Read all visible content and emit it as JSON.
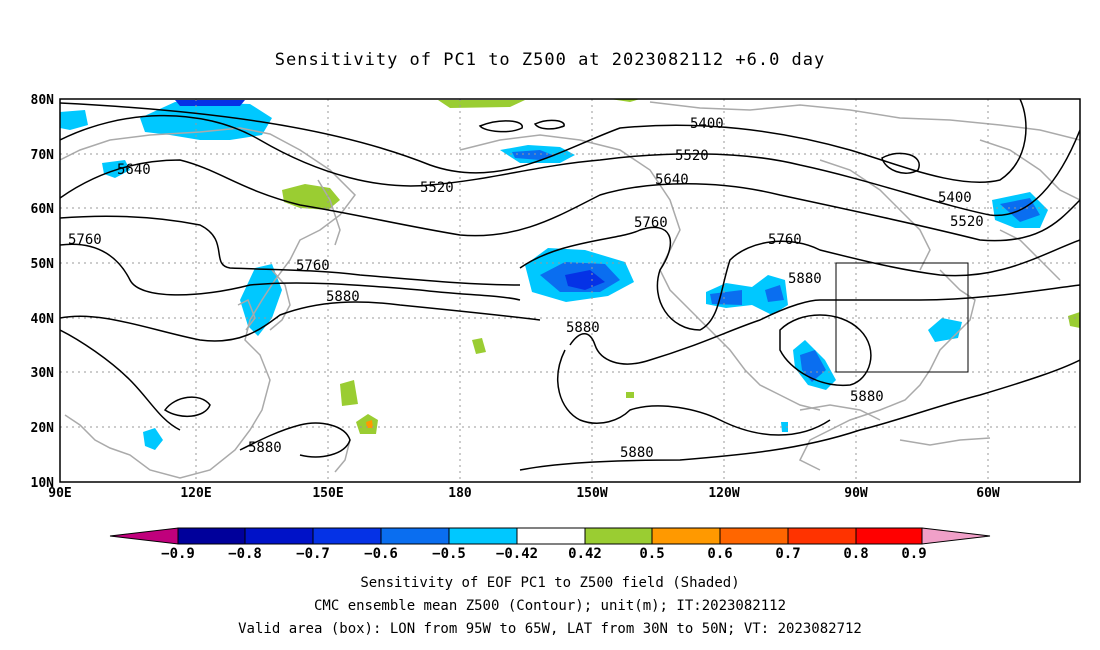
{
  "title": "Sensitivity of PC1 to Z500 at 2023082112 +6.0 day",
  "footer": {
    "line1": "Sensitivity of EOF PC1 to Z500 field (Shaded)",
    "line2": "CMC ensemble mean Z500 (Contour); unit(m); IT:2023082112",
    "line3": "Valid area (box): LON from 95W to 65W, LAT from 30N to 50N; VT: 2023082712"
  },
  "map": {
    "lat_labels": [
      "80N",
      "70N",
      "60N",
      "50N",
      "40N",
      "30N",
      "20N",
      "10N"
    ],
    "lon_labels": [
      "90E",
      "120E",
      "150E",
      "180",
      "150W",
      "120W",
      "90W",
      "60W"
    ],
    "contour_labels": [
      "5400",
      "5400",
      "5520",
      "5520",
      "5520",
      "5640",
      "5640",
      "5760",
      "5760",
      "5760",
      "5760",
      "5880",
      "5880",
      "5880",
      "5880",
      "5880",
      "5880"
    ],
    "colors": {
      "continent": "#aaaaaa",
      "grid": "#999999",
      "contour": "#000000",
      "neg_light": "#00c8ff",
      "neg_mid": "#0a6ef0",
      "neg_dark": "#0532e6",
      "pos_light": "#9acd32",
      "pos_orange": "#ff9900"
    }
  },
  "colorbar": {
    "labels": [
      "−0.9",
      "−0.8",
      "−0.7",
      "−0.6",
      "−0.5",
      "−0.42",
      "0.42",
      "0.5",
      "0.6",
      "0.7",
      "0.8",
      "0.9"
    ],
    "colors": [
      "#c0007c",
      "#00009b",
      "#0012c8",
      "#0532e6",
      "#0a6ef0",
      "#00c8ff",
      "#ffffff",
      "#9acd32",
      "#ff9900",
      "#ff6600",
      "#ff3300",
      "#ff0000",
      "#f0a0c8"
    ]
  }
}
